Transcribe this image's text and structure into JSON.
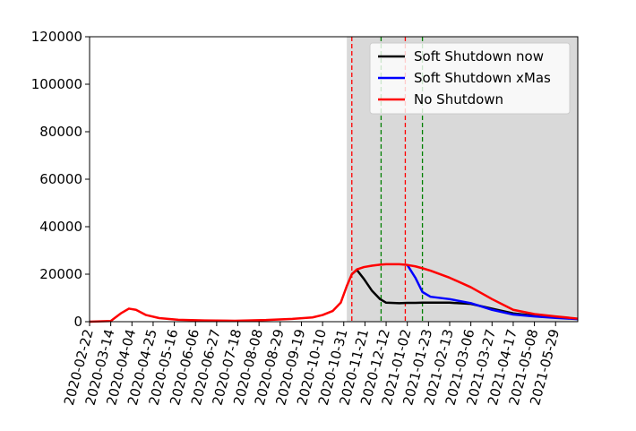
{
  "chart_data": {
    "type": "line",
    "x": [
      "2020-02-22",
      "2020-03-14",
      "2020-03-24",
      "2020-04-01",
      "2020-04-08",
      "2020-04-18",
      "2020-05-01",
      "2020-05-20",
      "2020-06-15",
      "2020-07-15",
      "2020-08-15",
      "2020-09-10",
      "2020-09-30",
      "2020-10-10",
      "2020-10-20",
      "2020-10-28",
      "2020-11-03",
      "2020-11-08",
      "2020-11-13",
      "2020-11-20",
      "2020-11-28",
      "2020-12-06",
      "2020-12-12",
      "2020-12-25",
      "2021-01-02",
      "2021-01-10",
      "2021-01-17",
      "2021-01-25",
      "2021-02-13",
      "2021-03-06",
      "2021-03-27",
      "2021-04-17",
      "2021-05-08",
      "2021-05-29",
      "2021-06-20"
    ],
    "series": [
      {
        "name": "Soft Shutdown now",
        "color": "#000000",
        "values": [
          null,
          null,
          null,
          null,
          null,
          null,
          null,
          null,
          null,
          null,
          null,
          null,
          null,
          null,
          null,
          null,
          null,
          20000,
          21800,
          18000,
          13000,
          9500,
          8000,
          7800,
          7900,
          7900,
          8000,
          8000,
          8000,
          7500,
          5500,
          3500,
          2500,
          1800,
          1200
        ]
      },
      {
        "name": "Soft Shutdown xMas",
        "color": "#0000ff",
        "values": [
          null,
          null,
          null,
          null,
          null,
          null,
          null,
          null,
          null,
          null,
          null,
          null,
          null,
          null,
          null,
          null,
          null,
          null,
          null,
          null,
          null,
          null,
          null,
          null,
          23900,
          18500,
          12500,
          10500,
          9500,
          7800,
          5000,
          3000,
          2200,
          1600,
          1100
        ]
      },
      {
        "name": "No Shutdown",
        "color": "#ff0000",
        "values": [
          0,
          300,
          3500,
          5500,
          5000,
          2800,
          1500,
          800,
          500,
          400,
          700,
          1200,
          1800,
          2800,
          4500,
          8000,
          15000,
          20000,
          22000,
          23000,
          23600,
          24000,
          24200,
          24200,
          23900,
          23300,
          22500,
          21500,
          18500,
          14500,
          9500,
          5000,
          3200,
          2200,
          1300
        ]
      }
    ],
    "xlim": [
      "2020-02-22",
      "2021-06-20"
    ],
    "xticks": [
      "2020-02-22",
      "2020-03-14",
      "2020-04-04",
      "2020-04-25",
      "2020-05-16",
      "2020-06-06",
      "2020-06-27",
      "2020-07-18",
      "2020-08-08",
      "2020-08-29",
      "2020-09-19",
      "2020-10-10",
      "2020-10-31",
      "2020-11-21",
      "2020-12-12",
      "2021-01-02",
      "2021-01-23",
      "2021-02-13",
      "2021-03-06",
      "2021-03-27",
      "2021-04-17",
      "2021-05-08",
      "2021-05-29"
    ],
    "ylim": [
      0,
      120000
    ],
    "yticks": [
      0,
      20000,
      40000,
      60000,
      80000,
      100000,
      120000
    ],
    "shade_start": "2020-11-03",
    "shade_color": "#d9d9d9",
    "vlines": [
      {
        "x": "2020-11-08",
        "color": "#ff0000"
      },
      {
        "x": "2020-12-07",
        "color": "#008000"
      },
      {
        "x": "2020-12-31",
        "color": "#ff0000"
      },
      {
        "x": "2021-01-17",
        "color": "#008000"
      }
    ],
    "legend": "upper right",
    "grid": false
  }
}
